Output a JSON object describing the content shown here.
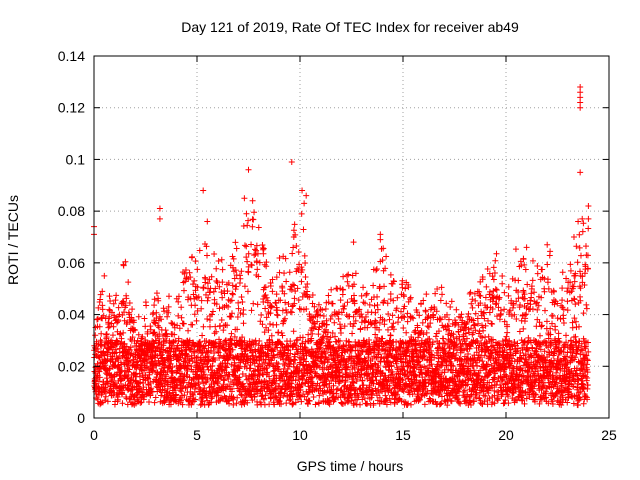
{
  "chart_data": {
    "type": "scatter",
    "title": "Day 121 of 2019, Rate Of TEC Index for receiver ab49",
    "xlabel": "GPS time / hours",
    "ylabel": "ROTI / TECUs",
    "xlim": [
      0,
      25
    ],
    "ylim": [
      0,
      0.14
    ],
    "xticks": [
      0,
      5,
      10,
      15,
      20,
      25
    ],
    "xtick_labels": [
      "0",
      "5",
      "10",
      "15",
      "20",
      "25"
    ],
    "yticks": [
      0,
      0.02,
      0.04,
      0.06,
      0.08,
      0.1,
      0.12,
      0.14
    ],
    "ytick_labels": [
      "0",
      "0.02",
      "0.04",
      "0.06",
      "0.08",
      "0.1",
      "0.12",
      "0.14"
    ],
    "grid": true,
    "marker": "+",
    "color": "#ff0000",
    "series": [
      {
        "name": "ROTI",
        "dense_x_range": [
          0,
          24
        ],
        "baseline_range": [
          0.005,
          0.03
        ],
        "envelope": [
          {
            "x": 0.0,
            "y": 0.04
          },
          {
            "x": 0.5,
            "y": 0.055
          },
          {
            "x": 1.0,
            "y": 0.045
          },
          {
            "x": 1.5,
            "y": 0.062
          },
          {
            "x": 2.0,
            "y": 0.04
          },
          {
            "x": 2.5,
            "y": 0.045
          },
          {
            "x": 3.0,
            "y": 0.05
          },
          {
            "x": 3.5,
            "y": 0.048
          },
          {
            "x": 4.0,
            "y": 0.05
          },
          {
            "x": 4.5,
            "y": 0.064
          },
          {
            "x": 5.0,
            "y": 0.065
          },
          {
            "x": 5.5,
            "y": 0.07
          },
          {
            "x": 6.0,
            "y": 0.066
          },
          {
            "x": 6.5,
            "y": 0.06
          },
          {
            "x": 7.0,
            "y": 0.073
          },
          {
            "x": 7.5,
            "y": 0.086
          },
          {
            "x": 8.0,
            "y": 0.076
          },
          {
            "x": 8.5,
            "y": 0.055
          },
          {
            "x": 9.0,
            "y": 0.062
          },
          {
            "x": 9.5,
            "y": 0.07
          },
          {
            "x": 10.0,
            "y": 0.085
          },
          {
            "x": 10.5,
            "y": 0.05
          },
          {
            "x": 11.0,
            "y": 0.045
          },
          {
            "x": 11.5,
            "y": 0.05
          },
          {
            "x": 12.0,
            "y": 0.053
          },
          {
            "x": 12.5,
            "y": 0.062
          },
          {
            "x": 13.0,
            "y": 0.05
          },
          {
            "x": 13.5,
            "y": 0.058
          },
          {
            "x": 14.0,
            "y": 0.07
          },
          {
            "x": 14.5,
            "y": 0.055
          },
          {
            "x": 15.0,
            "y": 0.059
          },
          {
            "x": 15.5,
            "y": 0.045
          },
          {
            "x": 16.0,
            "y": 0.048
          },
          {
            "x": 16.5,
            "y": 0.056
          },
          {
            "x": 17.0,
            "y": 0.05
          },
          {
            "x": 17.5,
            "y": 0.045
          },
          {
            "x": 18.0,
            "y": 0.048
          },
          {
            "x": 18.5,
            "y": 0.05
          },
          {
            "x": 19.0,
            "y": 0.058
          },
          {
            "x": 19.5,
            "y": 0.065
          },
          {
            "x": 20.0,
            "y": 0.05
          },
          {
            "x": 20.5,
            "y": 0.066
          },
          {
            "x": 21.0,
            "y": 0.06
          },
          {
            "x": 21.5,
            "y": 0.062
          },
          {
            "x": 22.0,
            "y": 0.068
          },
          {
            "x": 22.5,
            "y": 0.058
          },
          {
            "x": 23.0,
            "y": 0.055
          },
          {
            "x": 23.5,
            "y": 0.075
          },
          {
            "x": 24.0,
            "y": 0.08
          }
        ],
        "notable_points": [
          {
            "x": 0.0,
            "y": 0.074
          },
          {
            "x": 0.0,
            "y": 0.071
          },
          {
            "x": 3.2,
            "y": 0.081
          },
          {
            "x": 3.2,
            "y": 0.077
          },
          {
            "x": 5.3,
            "y": 0.088
          },
          {
            "x": 5.5,
            "y": 0.076
          },
          {
            "x": 7.3,
            "y": 0.085
          },
          {
            "x": 7.5,
            "y": 0.096
          },
          {
            "x": 7.7,
            "y": 0.084
          },
          {
            "x": 7.4,
            "y": 0.079
          },
          {
            "x": 9.6,
            "y": 0.099
          },
          {
            "x": 9.7,
            "y": 0.07
          },
          {
            "x": 10.1,
            "y": 0.088
          },
          {
            "x": 10.3,
            "y": 0.086
          },
          {
            "x": 10.2,
            "y": 0.083
          },
          {
            "x": 12.6,
            "y": 0.068
          },
          {
            "x": 13.9,
            "y": 0.071
          },
          {
            "x": 13.9,
            "y": 0.069
          },
          {
            "x": 21.0,
            "y": 0.066
          },
          {
            "x": 22.0,
            "y": 0.067
          },
          {
            "x": 23.3,
            "y": 0.07
          },
          {
            "x": 23.6,
            "y": 0.128
          },
          {
            "x": 23.6,
            "y": 0.126
          },
          {
            "x": 23.6,
            "y": 0.124
          },
          {
            "x": 23.6,
            "y": 0.122
          },
          {
            "x": 23.6,
            "y": 0.12
          },
          {
            "x": 23.6,
            "y": 0.095
          },
          {
            "x": 23.7,
            "y": 0.077
          },
          {
            "x": 24.0,
            "y": 0.082
          },
          {
            "x": 24.0,
            "y": 0.077
          },
          {
            "x": 23.5,
            "y": 0.076
          },
          {
            "x": 23.9,
            "y": 0.063
          }
        ]
      }
    ]
  }
}
